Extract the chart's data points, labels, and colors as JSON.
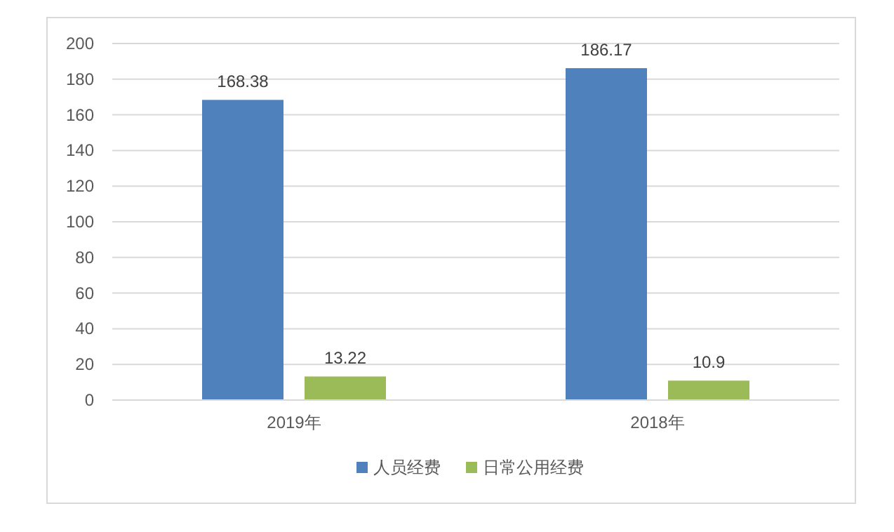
{
  "chart_data": {
    "type": "bar",
    "categories": [
      "2019年",
      "2018年"
    ],
    "series": [
      {
        "name": "人员经费",
        "color": "#4f81bd",
        "values": [
          168.38,
          186.17
        ]
      },
      {
        "name": "日常公用经费",
        "color": "#9bbb59",
        "values": [
          13.22,
          10.9
        ]
      }
    ],
    "ylim": [
      0,
      200
    ],
    "yticks": [
      0,
      20,
      40,
      60,
      80,
      100,
      120,
      140,
      160,
      180,
      200
    ],
    "grid": "y",
    "legend": "bottom",
    "data_labels": true
  }
}
